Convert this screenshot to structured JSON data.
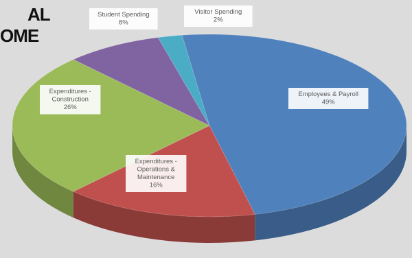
{
  "title_lines": [
    "AL",
    "OME"
  ],
  "colors": {
    "employees": "#4f81bd",
    "operations": "#c0504d",
    "construction": "#9bbb59",
    "student": "#8064a2",
    "visitor": "#4bacc6"
  },
  "chart_data": {
    "type": "pie",
    "style": "3d",
    "slices": [
      {
        "label_lines": [
          "Employees & Payroll",
          "49%"
        ],
        "value": 49,
        "color_key": "employees"
      },
      {
        "label_lines": [
          "Expenditures -",
          "Operations &",
          "Maintenance",
          "16%"
        ],
        "value": 16,
        "color_key": "operations"
      },
      {
        "label_lines": [
          "Expenditures -",
          "Construction",
          "26%"
        ],
        "value": 26,
        "color_key": "construction"
      },
      {
        "label_lines": [
          "Student Spending",
          "8%"
        ],
        "value": 8,
        "color_key": "student"
      },
      {
        "label_lines": [
          "Visitor Spending",
          "2%"
        ],
        "value": 2,
        "color_key": "visitor"
      }
    ]
  }
}
